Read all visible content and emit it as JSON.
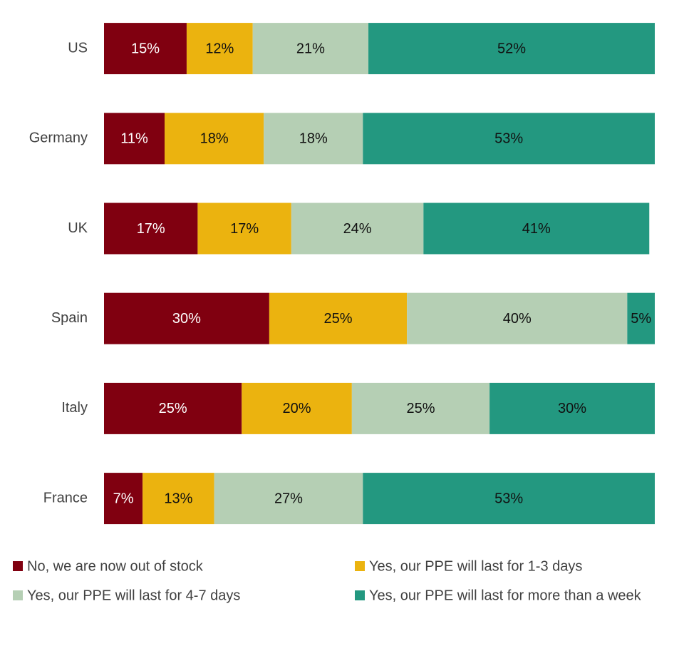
{
  "chart_data": {
    "type": "bar",
    "orientation": "horizontal",
    "stacked": true,
    "categories": [
      "US",
      "Germany",
      "UK",
      "Spain",
      "Italy",
      "France"
    ],
    "xlim": [
      0,
      100
    ],
    "series": [
      {
        "name": "No, we are now out of stock",
        "color": "#800010",
        "values": [
          15,
          11,
          17,
          30,
          25,
          7
        ],
        "value_labels": [
          "15%",
          "11%",
          "17%",
          "30%",
          "25%",
          "7%"
        ]
      },
      {
        "name": "Yes, our PPE will last for 1-3 days",
        "color": "#ebb30f",
        "values": [
          12,
          18,
          17,
          25,
          20,
          13
        ],
        "value_labels": [
          "12%",
          "18%",
          "17%",
          "25%",
          "20%",
          "13%"
        ]
      },
      {
        "name": "Yes, our PPE will last for 4-7 days",
        "color": "#b5cfb4",
        "values": [
          21,
          18,
          24,
          40,
          25,
          27
        ],
        "value_labels": [
          "21%",
          "18%",
          "24%",
          "40%",
          "25%",
          "27%"
        ]
      },
      {
        "name": "Yes, our PPE will last for more than a week",
        "color": "#239880",
        "values": [
          52,
          53,
          41,
          5,
          30,
          53
        ],
        "value_labels": [
          "52%",
          "53%",
          "41%",
          "5%",
          "30%",
          "53%"
        ]
      }
    ],
    "legend": "bottom"
  }
}
